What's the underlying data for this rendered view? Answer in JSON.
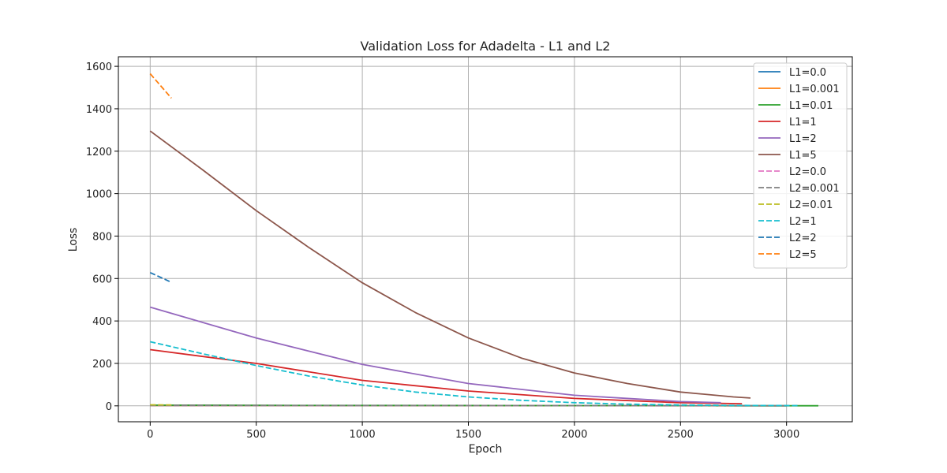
{
  "chart_data": {
    "type": "line",
    "title": "Validation Loss for Adadelta - L1 and L2",
    "xlabel": "Epoch",
    "ylabel": "Loss",
    "xlim": [
      -150,
      3310
    ],
    "ylim": [
      -75,
      1645
    ],
    "xticks": [
      0,
      500,
      1000,
      1500,
      2000,
      2500,
      3000
    ],
    "yticks": [
      0,
      200,
      400,
      600,
      800,
      1000,
      1200,
      1400,
      1600
    ],
    "grid": true,
    "legend_position": "upper right",
    "series": [
      {
        "name": "L1=0.0",
        "color": "#1f77b4",
        "dash": "solid",
        "x": [
          0,
          3000
        ],
        "y": [
          2,
          0.5
        ]
      },
      {
        "name": "L1=0.001",
        "color": "#ff7f0e",
        "dash": "solid",
        "x": [
          0,
          3000
        ],
        "y": [
          2,
          0.5
        ]
      },
      {
        "name": "L1=0.01",
        "color": "#2ca02c",
        "dash": "solid",
        "x": [
          0,
          1000,
          2000,
          3150
        ],
        "y": [
          3,
          2,
          1,
          0.5
        ]
      },
      {
        "name": "L1=1",
        "color": "#d62728",
        "dash": "solid",
        "x": [
          0,
          500,
          1000,
          1500,
          2000,
          2500,
          2790
        ],
        "y": [
          265,
          200,
          120,
          70,
          35,
          15,
          10
        ]
      },
      {
        "name": "L1=2",
        "color": "#9467bd",
        "dash": "solid",
        "x": [
          0,
          500,
          1000,
          1500,
          2000,
          2500,
          2690
        ],
        "y": [
          465,
          320,
          195,
          105,
          50,
          20,
          15
        ]
      },
      {
        "name": "L1=5",
        "color": "#8c564b",
        "dash": "solid",
        "x": [
          0,
          250,
          500,
          750,
          1000,
          1250,
          1500,
          1750,
          2000,
          2250,
          2500,
          2750,
          2830
        ],
        "y": [
          1295,
          1110,
          920,
          745,
          580,
          440,
          320,
          225,
          155,
          105,
          65,
          42,
          37
        ]
      },
      {
        "name": "L2=0.0",
        "color": "#e377c2",
        "dash": "dashed",
        "x": [
          0,
          2600
        ],
        "y": [
          2,
          0.5
        ]
      },
      {
        "name": "L2=0.001",
        "color": "#7f7f7f",
        "dash": "dashed",
        "x": [
          0,
          3000
        ],
        "y": [
          2,
          0.5
        ]
      },
      {
        "name": "L2=0.01",
        "color": "#bcbd22",
        "dash": "dashed",
        "x": [
          0,
          100
        ],
        "y": [
          5,
          4
        ]
      },
      {
        "name": "L2=1",
        "color": "#17becf",
        "dash": "dashed",
        "x": [
          0,
          250,
          500,
          750,
          1000,
          1250,
          1500,
          1750,
          2000,
          2250,
          2500,
          2750,
          3060
        ],
        "y": [
          302,
          245,
          190,
          140,
          98,
          65,
          42,
          26,
          15,
          8,
          4,
          2,
          1
        ]
      },
      {
        "name": "L2=2",
        "color": "#1f77b4",
        "dash": "dashed",
        "x": [
          0,
          100
        ],
        "y": [
          628,
          582
        ]
      },
      {
        "name": "L2=5",
        "color": "#ff7f0e",
        "dash": "dashed",
        "x": [
          0,
          100
        ],
        "y": [
          1565,
          1450
        ]
      }
    ]
  }
}
